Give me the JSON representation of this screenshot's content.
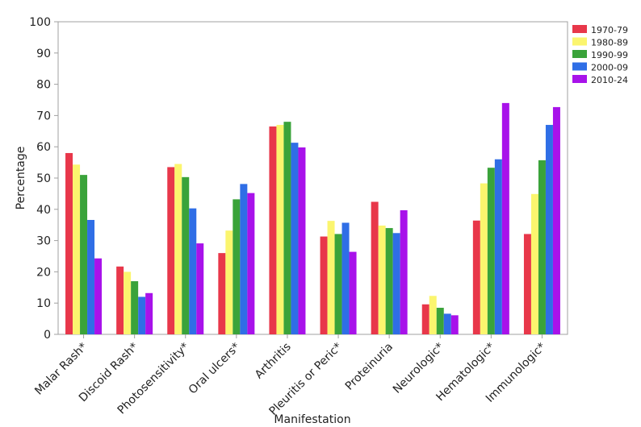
{
  "chart_data": {
    "type": "bar",
    "title": "",
    "xlabel": "Manifestation",
    "ylabel": "Percentage",
    "ylim": [
      0,
      100
    ],
    "yticks": [
      0,
      10,
      20,
      30,
      40,
      50,
      60,
      70,
      80,
      90,
      100
    ],
    "grid": false,
    "legend_position": "top-right",
    "categories": [
      "Malar Rash*",
      "Discoid Rash*",
      "Photosensitivity*",
      "Oral ulcers*",
      "Arthritis",
      "Pleuritis or Peric*",
      "Proteinuria",
      "Neurologic*",
      "Hematologic*",
      "Immunologic*"
    ],
    "series": [
      {
        "name": "1970-79",
        "color": "#e8374a",
        "values": [
          58,
          21.7,
          53.5,
          26,
          66.5,
          31.3,
          42.4,
          9.6,
          36.4,
          32.1
        ]
      },
      {
        "name": "1980-89",
        "color": "#fbf56e",
        "values": [
          54.3,
          20,
          54.5,
          33.2,
          67,
          36.3,
          34.8,
          12.3,
          48.3,
          44.9
        ]
      },
      {
        "name": "1990-99",
        "color": "#3aa33a",
        "values": [
          51,
          17,
          50.3,
          43.2,
          68,
          32.1,
          34,
          8.5,
          53.3,
          55.7
        ]
      },
      {
        "name": "2000-09",
        "color": "#2f6ee6",
        "values": [
          36.6,
          12,
          40.3,
          48.1,
          61.3,
          35.7,
          32.4,
          6.6,
          56,
          67
        ]
      },
      {
        "name": "2010-24",
        "color": "#a812ea",
        "values": [
          24.3,
          13.2,
          29.1,
          45.2,
          59.8,
          26.4,
          39.7,
          6.1,
          74,
          72.7
        ]
      }
    ]
  }
}
